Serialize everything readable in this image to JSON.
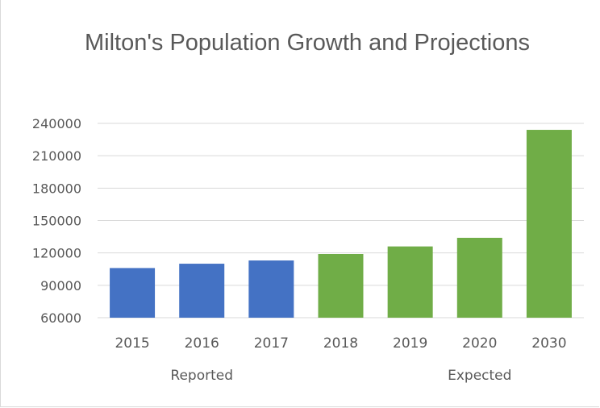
{
  "chart_data": {
    "type": "bar",
    "title": "Milton's Population Growth and Projections",
    "categories": [
      "2015",
      "2016",
      "2017",
      "2018",
      "2019",
      "2020",
      "2030"
    ],
    "values": [
      106000,
      110000,
      113000,
      119000,
      126000,
      134000,
      234000
    ],
    "group_labels": [
      "Reported",
      "Expected"
    ],
    "groups": [
      "Reported",
      "Reported",
      "Reported",
      "Expected",
      "Expected",
      "Expected",
      "Expected"
    ],
    "colors": {
      "Reported": "#4472C4",
      "Expected": "#70AD47"
    },
    "ylim": [
      60000,
      240000
    ],
    "yticks": [
      "60000",
      "90000",
      "120000",
      "150000",
      "180000",
      "210000",
      "240000"
    ],
    "xlabel": "",
    "ylabel": "",
    "grid": true,
    "legend": false
  }
}
